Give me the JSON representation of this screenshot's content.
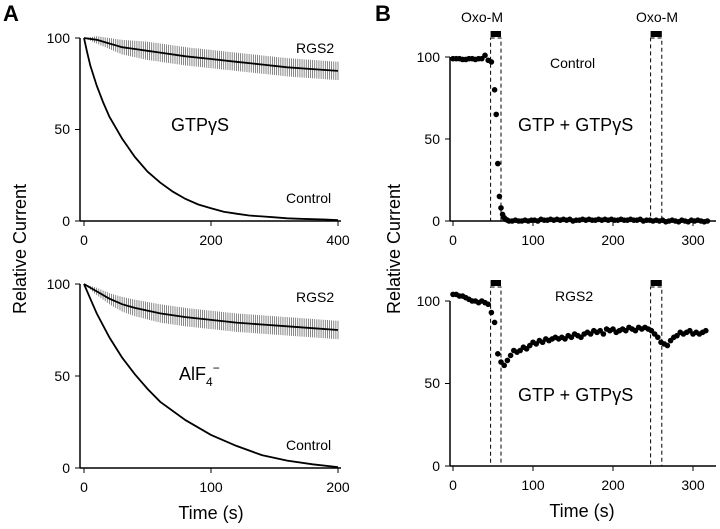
{
  "panels": {
    "a_letter": "A",
    "b_letter": "B"
  },
  "chart_data": [
    {
      "id": "A-top",
      "type": "line",
      "xlim": [
        0,
        400
      ],
      "ylim": [
        0,
        100
      ],
      "xticks": [
        0,
        200,
        400
      ],
      "yticks": [
        0,
        50,
        100
      ],
      "xtick_labels": [
        "0",
        "200",
        "400"
      ],
      "ytick_labels": [
        "0",
        "50",
        "100"
      ],
      "center_label": "GTPγS",
      "series": [
        {
          "name": "RGS2",
          "error_bars": true,
          "x": [
            0,
            20,
            40,
            60,
            80,
            100,
            120,
            160,
            200,
            240,
            280,
            320,
            360,
            400
          ],
          "y": [
            100,
            99,
            97,
            95,
            94,
            93,
            92,
            90,
            88.5,
            87,
            85.5,
            84,
            83,
            82
          ],
          "error_halfwidth": [
            0,
            2,
            3,
            4,
            4.5,
            5,
            5,
            5,
            5,
            5,
            5,
            5,
            5,
            5
          ]
        },
        {
          "name": "Control",
          "x": [
            0,
            5,
            10,
            20,
            30,
            40,
            60,
            80,
            100,
            120,
            140,
            160,
            180,
            200,
            220,
            240,
            260,
            280,
            300,
            320,
            340,
            360,
            380,
            400
          ],
          "y": [
            100,
            92,
            85,
            74,
            65,
            57,
            45,
            35,
            27,
            21,
            16,
            12,
            9,
            7,
            5,
            4,
            3,
            2.5,
            2,
            1.5,
            1.2,
            1,
            0.8,
            0.5
          ]
        }
      ]
    },
    {
      "id": "A-bottom",
      "type": "line",
      "xlim": [
        0,
        200
      ],
      "ylim": [
        0,
        100
      ],
      "xticks": [
        0,
        100,
        200
      ],
      "yticks": [
        0,
        50,
        100
      ],
      "xtick_labels": [
        "0",
        "100",
        "200"
      ],
      "ytick_labels": [
        "0",
        "50",
        "100"
      ],
      "xlabel": "Time (s)",
      "center_label": "AlF4−",
      "series": [
        {
          "name": "RGS2",
          "error_bars": true,
          "x": [
            0,
            10,
            20,
            30,
            40,
            60,
            80,
            100,
            120,
            140,
            160,
            180,
            200
          ],
          "y": [
            100,
            96,
            92,
            89,
            87,
            84,
            82,
            80.5,
            79,
            78,
            77,
            76,
            75
          ],
          "error_halfwidth": [
            0,
            2,
            3,
            4,
            4.5,
            5,
            5,
            5,
            5,
            5,
            5,
            5,
            5
          ]
        },
        {
          "name": "Control",
          "x": [
            0,
            5,
            10,
            20,
            30,
            40,
            50,
            60,
            80,
            100,
            120,
            140,
            160,
            180,
            200
          ],
          "y": [
            100,
            92,
            84,
            71,
            60,
            51,
            43,
            36,
            26,
            18,
            12,
            7,
            4,
            2,
            0.5
          ]
        }
      ]
    },
    {
      "id": "B-top",
      "type": "scatter",
      "xlim": [
        0,
        320
      ],
      "ylim": [
        0,
        100
      ],
      "xticks": [
        0,
        100,
        200,
        300
      ],
      "yticks": [
        0,
        50,
        100
      ],
      "xtick_labels": [
        "0",
        "100",
        "200",
        "300"
      ],
      "ytick_labels": [
        "0",
        "50",
        "100"
      ],
      "stimulus_label": "Oxo-M",
      "stimuli": [
        [
          47,
          60
        ],
        [
          247,
          261
        ]
      ],
      "condition_label": "Control",
      "center_label": "GTP + GTPγS",
      "series": [
        {
          "name": "Control",
          "x": [
            0,
            4,
            8,
            12,
            16,
            20,
            24,
            28,
            32,
            36,
            40,
            44,
            48,
            52,
            54,
            56,
            58,
            60,
            62,
            64,
            66,
            68,
            70,
            74,
            78,
            82,
            86,
            90,
            94,
            98,
            102,
            106,
            110,
            114,
            118,
            122,
            126,
            130,
            134,
            138,
            142,
            146,
            150,
            154,
            158,
            162,
            166,
            170,
            174,
            178,
            182,
            186,
            190,
            194,
            198,
            202,
            206,
            210,
            214,
            218,
            222,
            226,
            230,
            234,
            238,
            242,
            246,
            250,
            254,
            258,
            262,
            266,
            270,
            274,
            278,
            282,
            286,
            290,
            294,
            298,
            302,
            306,
            310,
            314,
            318
          ],
          "y": [
            99,
            99,
            99,
            98.5,
            98.5,
            99,
            99,
            98.5,
            99,
            99,
            101,
            98,
            97,
            80,
            65,
            35,
            15,
            8,
            4,
            2,
            1,
            0.5,
            0,
            0,
            0.5,
            0,
            0,
            0.5,
            0,
            0.5,
            0.5,
            0,
            1,
            0.5,
            0.5,
            1,
            0.5,
            1,
            0.5,
            1,
            0.5,
            1,
            0,
            0.5,
            0.5,
            1,
            0.5,
            1,
            0.5,
            0.5,
            1,
            0.5,
            1,
            0.5,
            1,
            0.5,
            0.5,
            1,
            0.5,
            0.5,
            1,
            0.5,
            0.5,
            1,
            0,
            0.5,
            0.5,
            0,
            0.5,
            0,
            0.5,
            -0.5,
            0,
            0.5,
            0,
            -0.5,
            0.5,
            0,
            -0.5,
            0.5,
            0,
            0.5,
            0,
            -0.5,
            0
          ]
        }
      ]
    },
    {
      "id": "B-bottom",
      "type": "scatter",
      "xlim": [
        0,
        320
      ],
      "ylim": [
        0,
        100
      ],
      "xticks": [
        0,
        100,
        200,
        300
      ],
      "yticks": [
        0,
        50,
        100
      ],
      "xtick_labels": [
        "0",
        "100",
        "200",
        "300"
      ],
      "ytick_labels": [
        "0",
        "50",
        "100"
      ],
      "xlabel": "Time (s)",
      "stimuli": [
        [
          47,
          60
        ],
        [
          247,
          261
        ]
      ],
      "condition_label": "RGS2",
      "center_label": "GTP + GTPγS",
      "series": [
        {
          "name": "RGS2",
          "x": [
            0,
            4,
            8,
            12,
            16,
            20,
            24,
            28,
            32,
            36,
            40,
            44,
            48,
            52,
            56,
            60,
            64,
            68,
            72,
            76,
            80,
            84,
            88,
            92,
            96,
            100,
            104,
            108,
            112,
            116,
            120,
            124,
            128,
            132,
            136,
            140,
            144,
            148,
            152,
            156,
            160,
            164,
            168,
            172,
            176,
            180,
            184,
            188,
            192,
            196,
            200,
            204,
            208,
            212,
            216,
            220,
            224,
            228,
            232,
            236,
            240,
            244,
            248,
            252,
            256,
            260,
            264,
            268,
            272,
            276,
            280,
            284,
            288,
            292,
            296,
            300,
            304,
            308,
            312,
            316
          ],
          "y": [
            104,
            104,
            103,
            103,
            102,
            101,
            100,
            100,
            99,
            100,
            99,
            98,
            93,
            87,
            68,
            63,
            61,
            64,
            67,
            70,
            69,
            70,
            72,
            71,
            73,
            75,
            74,
            76,
            75,
            77,
            76,
            77,
            78,
            77,
            78,
            77,
            79,
            78,
            80,
            79,
            78,
            80,
            81,
            80,
            82,
            81,
            82,
            80,
            83,
            82,
            83,
            81,
            82,
            83,
            82,
            84,
            83,
            82,
            84,
            83,
            84,
            83,
            82,
            80,
            78,
            75,
            74,
            73,
            76,
            78,
            79,
            81,
            80,
            81,
            82,
            80,
            81,
            80,
            81,
            82
          ]
        }
      ]
    }
  ],
  "axes_labels": {
    "ylabel_a": "Relative Current",
    "ylabel_b": "Relative Current"
  },
  "labels": {
    "a_top_rgs2": "RGS2",
    "a_top_control": "Control",
    "a_top_center": "GTPγS",
    "a_bot_rgs2": "RGS2",
    "a_bot_control": "Control",
    "a_bot_center_main": "AlF",
    "a_bot_center_sub": "4",
    "a_bot_center_sup": "−",
    "a_xlabel": "Time (s)",
    "b_oxo_1": "Oxo-M",
    "b_oxo_2": "Oxo-M",
    "b_top_condition": "Control",
    "b_top_center": "GTP + GTPγS",
    "b_bot_condition": "RGS2",
    "b_bot_center": "GTP + GTPγS",
    "b_xlabel": "Time (s)"
  },
  "ticks": {
    "a_top_y": [
      "0",
      "50",
      "100"
    ],
    "a_top_x": [
      "0",
      "200",
      "400"
    ],
    "a_bot_y": [
      "0",
      "50",
      "100"
    ],
    "a_bot_x": [
      "0",
      "100",
      "200"
    ],
    "b_top_y": [
      "0",
      "50",
      "100"
    ],
    "b_top_x": [
      "0",
      "100",
      "200",
      "300"
    ],
    "b_bot_y": [
      "0",
      "50",
      "100"
    ],
    "b_bot_x": [
      "0",
      "100",
      "200",
      "300"
    ]
  }
}
